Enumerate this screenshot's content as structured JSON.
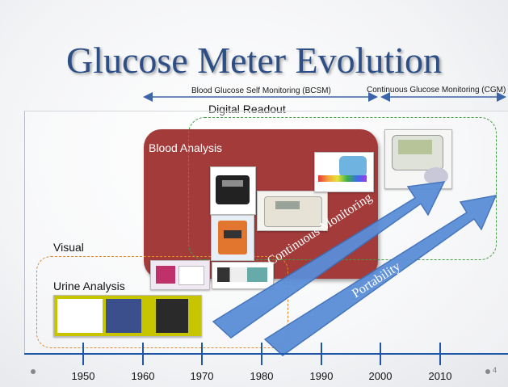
{
  "slide": {
    "title": "Glucose Meter Evolution",
    "page_number": "4"
  },
  "headers": {
    "bcsm": "Blood Glucose Self  Monitoring (BCSM)",
    "cgm": "Continuous Glucose Monitoring (CGM)"
  },
  "regions": {
    "digital": "Digital Readout",
    "blood": "Blood Analysis",
    "visual": "Visual",
    "urine": "Urine Analysis"
  },
  "arrows": {
    "continuous": "Continuous Monitoring",
    "portability": "Portability"
  },
  "timeline": {
    "years": [
      "1950",
      "1960",
      "1970",
      "1980",
      "1990",
      "2000",
      "2010"
    ]
  },
  "colors": {
    "title": "#2d4f86",
    "blood_region": "#a33b3b",
    "dashed_green": "#3f9c3f",
    "dashed_orange": "#e08a2c",
    "arrow_fill": "#5b8ed8",
    "axis": "#1e56a8"
  }
}
